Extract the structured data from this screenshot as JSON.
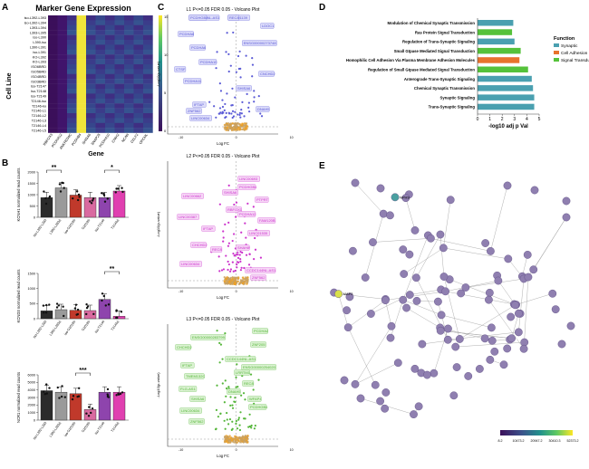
{
  "panels": {
    "A": {
      "label": "A",
      "title": "Marker Gene Expression",
      "xlabel": "Gene",
      "ylabel": "Cell Line",
      "genes": [
        "RBFOX3",
        "PCDHA12",
        "ANKRD34C",
        "PCDHB4",
        "SHISA6",
        "SNAP25",
        "PCDHA10",
        "CNIH2",
        "NCAN",
        "CELF2",
        "OPCML"
      ],
      "cell_lines": [
        "iso-L392-L393",
        "iso-L392-L394",
        "L393-L394",
        "L393-L395",
        "iso-L390",
        "L390-iso",
        "L390-L391",
        "iso-L391",
        "KO-L392",
        "KO-L393",
        "ISO6BRD",
        "ISO5BRD",
        "ISO4BRD",
        "ISO3BRD",
        "Iso-T2147",
        "Iso-T2148",
        "Iso-T2149",
        "T2146-iso",
        "T2146-ko",
        "T2146-L1",
        "T2146-L2",
        "T2146-L3",
        "T2146-L4",
        "T2146-L5"
      ],
      "colorbar_ticks": [
        "15",
        "10",
        "5",
        "0"
      ]
    },
    "B": {
      "label": "B",
      "categories": [
        "iso-L392-L393",
        "L392-L393Δ",
        "iso-G2019S",
        "G2019S",
        "iso-T2146",
        "T2146Δ"
      ],
      "colors": [
        "#2b2b2b",
        "#9a9a9a",
        "#c0392b",
        "#d96aa0",
        "#8e44ad",
        "#e040b0"
      ],
      "charts": [
        {
          "ylabel": "KCNH1 normalized read counts",
          "values": [
            870,
            1300,
            980,
            870,
            870,
            1160
          ],
          "ylim": [
            0,
            2000
          ],
          "ticks": [
            "0",
            "500",
            "1000",
            "1500",
            "2000"
          ],
          "sig": [
            {
              "text": "**",
              "from": 0,
              "to": 1
            },
            {
              "text": "*",
              "from": 4,
              "to": 5
            }
          ]
        },
        {
          "ylabel": "KCND3 normalized read counts",
          "values": [
            260,
            300,
            280,
            270,
            640,
            80
          ],
          "ylim": [
            0,
            1500
          ],
          "ticks": [
            "0",
            "500",
            "1000",
            "1500"
          ],
          "sig": [
            {
              "text": "**",
              "from": 4,
              "to": 5
            }
          ]
        },
        {
          "ylabel": "NCR1 normalized read counts",
          "values": [
            3900,
            3700,
            3500,
            1400,
            3700,
            3700
          ],
          "ylim": [
            0,
            6000
          ],
          "ticks": [
            "0",
            "1000",
            "2000",
            "3000",
            "4000",
            "5000",
            "6000"
          ],
          "sig": [
            {
              "text": "***",
              "from": 2,
              "to": 3
            }
          ]
        }
      ]
    },
    "C": {
      "label": "C",
      "xlabel": "Log FC",
      "ylabel": "-Log10(p-value)",
      "plots": [
        {
          "title": "L1 P<=0.05 FDR 0.05 - Volcano Plot",
          "color": "#5b5bd6",
          "labelbg": "#dcdcfa",
          "genes": [
            "CCDC144NL-AS1",
            "LINC01139",
            "LDOC1",
            "PCDHA8",
            "ENSG00000273748",
            "PCDHA6",
            "PCDHA10",
            "CTSF",
            "CNCHD2",
            "PCDHA11",
            "SHISA6",
            "IFTAP",
            "DNAH5",
            "ZNF562",
            "LINC00634",
            "PCDHGB4",
            "REC8"
          ]
        },
        {
          "title": "L2 P<=0.05 FDR 0.05 - Volcano Plot",
          "color": "#cc33cc",
          "labelbg": "#f6d6f6",
          "genes": [
            "LINC00693",
            "PCDHGB4",
            "SHISA6",
            "LINC00662",
            "PTPRT",
            "RBFOX1",
            "PCDHA12",
            "LINC00387",
            "FAM120B",
            "IFTAP",
            "LINC01535",
            "CHCHD2",
            "REC8",
            "SHAH8",
            "LINC00634",
            "CCDC144NL-AS1",
            "ZNF562"
          ]
        },
        {
          "title": "L3 P<=0.05 FDR 0.05 - Volcano Plot",
          "color": "#55b63a",
          "labelbg": "#dbf2d2",
          "genes": [
            "PCDHA2",
            "ENSG00000283799",
            "ZNF205",
            "CHCHD2",
            "CCDC144NL-AS1",
            "IFTAP",
            "ENSG00000254020",
            "TMEM132C",
            "LRRTM1",
            "REC8",
            "FLG-AS1",
            "DNAH5",
            "SHISA6",
            "WFAP4",
            "LINC00634",
            "PCDHGB4",
            "ZNF562"
          ]
        }
      ]
    },
    "D": {
      "label": "D",
      "xlabel": "-log10 adj p Val",
      "legend_title": "Function",
      "legend": [
        {
          "name": "Synaptic",
          "color": "#4aa0b0"
        },
        {
          "name": "Cell Adhesion",
          "color": "#e8732c"
        },
        {
          "name": "Signal Transduction",
          "color": "#55c23a"
        }
      ],
      "xticks": [
        "0",
        "1",
        "2",
        "3",
        "4",
        "5"
      ]
    },
    "E": {
      "label": "E",
      "colorbar_ticks": [
        "8.2",
        "10473.2",
        "20947.2",
        "30410.3",
        "52373.2"
      ],
      "highlight_labels": [
        "MAP2",
        "NPHS"
      ]
    }
  },
  "chart_data": [
    {
      "type": "bar",
      "title": "Enriched terms",
      "categories": [
        "Modulation of Chemical Synaptic Transmission",
        "Ras Protein Signal Transduction",
        "Regulation of Trans-Synaptic Signaling",
        "Small Gtpase Mediated Signal Transduction",
        "Homophilic Cell Adhesion Via Plasma Membrane Adhesion Molecules",
        "Regulation of Small Gtpase Mediated Signal Transduction",
        "Anterograde Trans-Synaptic Signaling",
        "Chemical Synaptic Transmission",
        "Synaptic Signaling",
        "Trans-Synaptic Signaling"
      ],
      "values": [
        2.9,
        2.8,
        3.0,
        3.5,
        3.4,
        4.1,
        4.4,
        4.5,
        4.6,
        4.6
      ],
      "functions": [
        "Synaptic",
        "Signal Transduction",
        "Synaptic",
        "Signal Transduction",
        "Cell Adhesion",
        "Signal Transduction",
        "Synaptic",
        "Synaptic",
        "Synaptic",
        "Synaptic"
      ],
      "xlabel": "-log10 adj p Val",
      "xlim": [
        0,
        5
      ]
    },
    {
      "type": "bar",
      "title": "KCNH1 normalized read counts",
      "categories": [
        "iso-L392-L393",
        "L392-L393Δ",
        "iso-G2019S",
        "G2019S",
        "iso-T2146",
        "T2146Δ"
      ],
      "values": [
        870,
        1300,
        980,
        870,
        870,
        1160
      ],
      "ylim": [
        0,
        2000
      ]
    },
    {
      "type": "bar",
      "title": "KCND3 normalized read counts",
      "categories": [
        "iso-L392-L393",
        "L392-L393Δ",
        "iso-G2019S",
        "G2019S",
        "iso-T2146",
        "T2146Δ"
      ],
      "values": [
        260,
        300,
        280,
        270,
        640,
        80
      ],
      "ylim": [
        0,
        1500
      ]
    },
    {
      "type": "bar",
      "title": "NCR1 normalized read counts",
      "categories": [
        "iso-L392-L393",
        "L392-L393Δ",
        "iso-G2019S",
        "G2019S",
        "iso-T2146",
        "T2146Δ"
      ],
      "values": [
        3900,
        3700,
        3500,
        1400,
        3700,
        3700
      ],
      "ylim": [
        0,
        6000
      ]
    }
  ]
}
